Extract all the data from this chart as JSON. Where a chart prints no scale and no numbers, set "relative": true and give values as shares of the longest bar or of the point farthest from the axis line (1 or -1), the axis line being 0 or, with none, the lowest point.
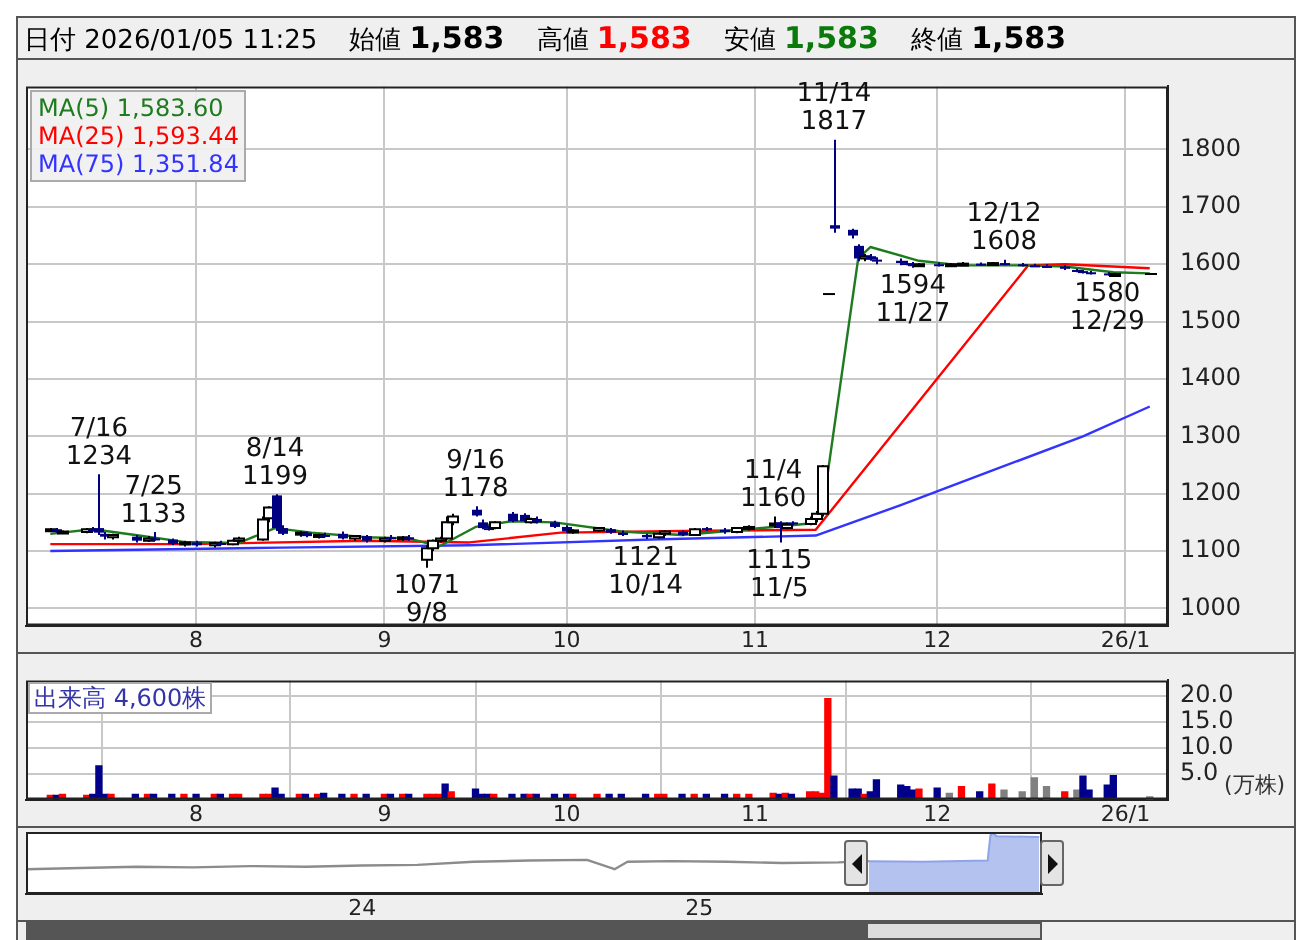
{
  "chart_data": [
    {
      "type": "candlestick",
      "annotations": [
        "日付 2026/01/05 11:25",
        "始値 1,583",
        "高値 1,583",
        "安値 1,583",
        "終値 1,583",
        {
          "text": "7/16\n1234",
          "x": "2025-07-16",
          "y": 1234
        },
        {
          "text": "7/25\n1133",
          "x": "2025-07-25",
          "y": 1133
        },
        {
          "text": "8/14\n1199",
          "x": "2025-08-14",
          "y": 1199
        },
        {
          "text": "1071\n9/8",
          "x": "2025-09-08",
          "y": 1071
        },
        {
          "text": "9/16\n1178",
          "x": "2025-09-16",
          "y": 1178
        },
        {
          "text": "1121\n10/14",
          "x": "2025-10-14",
          "y": 1121
        },
        {
          "text": "11/4\n1160",
          "x": "2025-11-04",
          "y": 1160
        },
        {
          "text": "1115\n11/5",
          "x": "2025-11-05",
          "y": 1115
        },
        {
          "text": "11/14\n1817",
          "x": "2025-11-14",
          "y": 1817
        },
        {
          "text": "1594\n11/27",
          "x": "2025-11-27",
          "y": 1594
        },
        {
          "text": "12/12\n1608",
          "x": "2025-12-12",
          "y": 1608
        },
        {
          "text": "1580\n12/29",
          "x": "2025-12-29",
          "y": 1580
        }
      ],
      "x": [
        "2025-07-08",
        "2025-07-09",
        "2025-07-10",
        "2025-07-14",
        "2025-07-15",
        "2025-07-16",
        "2025-07-17",
        "2025-07-18",
        "2025-07-22",
        "2025-07-24",
        "2025-07-25",
        "2025-07-28",
        "2025-07-30",
        "2025-08-01",
        "2025-08-04",
        "2025-08-05",
        "2025-08-07",
        "2025-08-08",
        "2025-08-12",
        "2025-08-13",
        "2025-08-14",
        "2025-08-15",
        "2025-08-18",
        "2025-08-19",
        "2025-08-21",
        "2025-08-22",
        "2025-08-25",
        "2025-08-27",
        "2025-08-29",
        "2025-09-01",
        "2025-09-02",
        "2025-09-04",
        "2025-09-05",
        "2025-09-08",
        "2025-09-09",
        "2025-09-10",
        "2025-09-11",
        "2025-09-12",
        "2025-09-16",
        "2025-09-17",
        "2025-09-18",
        "2025-09-19",
        "2025-09-22",
        "2025-09-24",
        "2025-09-25",
        "2025-09-26",
        "2025-09-29",
        "2025-10-01",
        "2025-10-02",
        "2025-10-06",
        "2025-10-08",
        "2025-10-10",
        "2025-10-14",
        "2025-10-16",
        "2025-10-17",
        "2025-10-20",
        "2025-10-22",
        "2025-10-24",
        "2025-10-27",
        "2025-10-29",
        "2025-10-31",
        "2025-11-04",
        "2025-11-05",
        "2025-11-06",
        "2025-11-07",
        "2025-11-10",
        "2025-11-11",
        "2025-11-12",
        "2025-11-13",
        "2025-11-14",
        "2025-11-17",
        "2025-11-18",
        "2025-11-19",
        "2025-11-20",
        "2025-11-21",
        "2025-11-25",
        "2025-11-26",
        "2025-11-27",
        "2025-11-28",
        "2025-12-01",
        "2025-12-03",
        "2025-12-05",
        "2025-12-08",
        "2025-12-10",
        "2025-12-12",
        "2025-12-15",
        "2025-12-17",
        "2025-12-19",
        "2025-12-22",
        "2025-12-24",
        "2025-12-25",
        "2025-12-26",
        "2025-12-29",
        "2025-12-30",
        "2026-01-05"
      ],
      "ohlc": [
        [
          1135,
          1140,
          1133,
          1138
        ],
        [
          1138,
          1140,
          1132,
          1135
        ],
        [
          1132,
          1136,
          1130,
          1134
        ],
        [
          1133,
          1140,
          1131,
          1138
        ],
        [
          1138,
          1142,
          1134,
          1136
        ],
        [
          1140,
          1234,
          1128,
          1132
        ],
        [
          1130,
          1133,
          1120,
          1125
        ],
        [
          1124,
          1130,
          1120,
          1128
        ],
        [
          1125,
          1128,
          1115,
          1118
        ],
        [
          1118,
          1126,
          1116,
          1122
        ],
        [
          1122,
          1133,
          1118,
          1120
        ],
        [
          1120,
          1122,
          1110,
          1112
        ],
        [
          1112,
          1118,
          1108,
          1115
        ],
        [
          1115,
          1118,
          1108,
          1110
        ],
        [
          1110,
          1116,
          1106,
          1114
        ],
        [
          1114,
          1118,
          1110,
          1112
        ],
        [
          1112,
          1120,
          1110,
          1118
        ],
        [
          1118,
          1125,
          1115,
          1122
        ],
        [
          1120,
          1160,
          1118,
          1155
        ],
        [
          1157,
          1178,
          1150,
          1176
        ],
        [
          1197,
          1199,
          1135,
          1140
        ],
        [
          1140,
          1145,
          1128,
          1130
        ],
        [
          1130,
          1135,
          1125,
          1132
        ],
        [
          1132,
          1134,
          1124,
          1126
        ],
        [
          1126,
          1130,
          1122,
          1128
        ],
        [
          1128,
          1132,
          1124,
          1125
        ],
        [
          1130,
          1134,
          1120,
          1122
        ],
        [
          1122,
          1128,
          1118,
          1126
        ],
        [
          1126,
          1128,
          1115,
          1118
        ],
        [
          1118,
          1125,
          1115,
          1122
        ],
        [
          1124,
          1128,
          1120,
          1121
        ],
        [
          1121,
          1126,
          1118,
          1124
        ],
        [
          1124,
          1128,
          1118,
          1120
        ],
        [
          1085,
          1110,
          1071,
          1105
        ],
        [
          1105,
          1120,
          1100,
          1118
        ],
        [
          1118,
          1125,
          1115,
          1122
        ],
        [
          1122,
          1160,
          1120,
          1150
        ],
        [
          1150,
          1165,
          1145,
          1160
        ],
        [
          1172,
          1178,
          1160,
          1162
        ],
        [
          1150,
          1155,
          1138,
          1140
        ],
        [
          1140,
          1144,
          1136,
          1138
        ],
        [
          1140,
          1152,
          1138,
          1150
        ],
        [
          1165,
          1168,
          1150,
          1152
        ],
        [
          1163,
          1166,
          1150,
          1152
        ],
        [
          1150,
          1158,
          1148,
          1156
        ],
        [
          1156,
          1160,
          1148,
          1150
        ],
        [
          1150,
          1153,
          1140,
          1142
        ],
        [
          1142,
          1145,
          1132,
          1134
        ],
        [
          1134,
          1138,
          1130,
          1136
        ],
        [
          1136,
          1142,
          1134,
          1140
        ],
        [
          1138,
          1140,
          1130,
          1132
        ],
        [
          1132,
          1136,
          1126,
          1128
        ],
        [
          1128,
          1130,
          1121,
          1124
        ],
        [
          1124,
          1132,
          1122,
          1130
        ],
        [
          1130,
          1136,
          1126,
          1134
        ],
        [
          1134,
          1136,
          1126,
          1128
        ],
        [
          1128,
          1140,
          1126,
          1138
        ],
        [
          1140,
          1142,
          1135,
          1137
        ],
        [
          1137,
          1140,
          1130,
          1133
        ],
        [
          1133,
          1142,
          1131,
          1140
        ],
        [
          1140,
          1145,
          1136,
          1142
        ],
        [
          1145,
          1160,
          1140,
          1148
        ],
        [
          1150,
          1152,
          1115,
          1140
        ],
        [
          1140,
          1150,
          1138,
          1146
        ],
        [
          1150,
          1152,
          1145,
          1147
        ],
        [
          1147,
          1160,
          1145,
          1156
        ],
        [
          1156,
          1170,
          1150,
          1165
        ],
        [
          1165,
          1250,
          1160,
          1248
        ],
        [
          1548,
          1548,
          1548,
          1548
        ],
        [
          1668,
          1817,
          1655,
          1662
        ],
        [
          1660,
          1662,
          1645,
          1650
        ],
        [
          1632,
          1635,
          1605,
          1610
        ],
        [
          1610,
          1618,
          1605,
          1614
        ],
        [
          1614,
          1618,
          1606,
          1608
        ],
        [
          1608,
          1612,
          1600,
          1606
        ],
        [
          1606,
          1610,
          1598,
          1602
        ],
        [
          1602,
          1606,
          1598,
          1600
        ],
        [
          1600,
          1604,
          1594,
          1598
        ],
        [
          1598,
          1602,
          1595,
          1600
        ],
        [
          1600,
          1603,
          1596,
          1598
        ],
        [
          1598,
          1602,
          1595,
          1600
        ],
        [
          1600,
          1604,
          1597,
          1601
        ],
        [
          1601,
          1603,
          1597,
          1599
        ],
        [
          1599,
          1604,
          1597,
          1602
        ],
        [
          1602,
          1608,
          1598,
          1600
        ],
        [
          1600,
          1602,
          1596,
          1598
        ],
        [
          1598,
          1601,
          1595,
          1597
        ],
        [
          1597,
          1600,
          1594,
          1596
        ],
        [
          1596,
          1598,
          1590,
          1592
        ],
        [
          1590,
          1592,
          1586,
          1588
        ],
        [
          1588,
          1590,
          1584,
          1586
        ],
        [
          1586,
          1588,
          1582,
          1584
        ],
        [
          1584,
          1586,
          1580,
          1582
        ],
        [
          1582,
          1585,
          1581,
          1583
        ],
        [
          1583,
          1583,
          1583,
          1583
        ]
      ],
      "series": [
        {
          "name": "MA(5) 1,583.60",
          "color": "#1e7b1e",
          "type": "line",
          "x": [
            "2025-07-08",
            "2025-07-15",
            "2025-07-22",
            "2025-07-30",
            "2025-08-08",
            "2025-08-14",
            "2025-08-20",
            "2025-08-29",
            "2025-09-05",
            "2025-09-10",
            "2025-09-16",
            "2025-09-22",
            "2025-09-29",
            "2025-10-10",
            "2025-10-20",
            "2025-10-31",
            "2025-11-10",
            "2025-11-12",
            "2025-11-18",
            "2025-11-20",
            "2025-11-28",
            "2025-12-05",
            "2025-12-15",
            "2025-12-22",
            "2025-12-30",
            "2026-01-05"
          ],
          "values": [
            1130,
            1138,
            1128,
            1116,
            1114,
            1140,
            1132,
            1124,
            1122,
            1108,
            1142,
            1152,
            1150,
            1134,
            1128,
            1138,
            1148,
            1162,
            1610,
            1630,
            1606,
            1598,
            1598,
            1596,
            1586,
            1584
          ]
        },
        {
          "name": "MA(25) 1,593.44",
          "color": "#ff0000",
          "type": "line",
          "x": [
            "2025-07-08",
            "2025-07-31",
            "2025-08-29",
            "2025-09-15",
            "2025-09-30",
            "2025-10-20",
            "2025-11-11",
            "2025-12-16",
            "2025-12-22",
            "2026-01-05"
          ],
          "values": [
            1112,
            1112,
            1118,
            1115,
            1132,
            1135,
            1137,
            1598,
            1600,
            1593
          ]
        },
        {
          "name": "MA(75) 1,351.84",
          "color": "#3333ff",
          "type": "line",
          "x": [
            "2025-07-08",
            "2025-08-15",
            "2025-09-15",
            "2025-10-15",
            "2025-11-11",
            "2025-11-25",
            "2025-12-10",
            "2025-12-25",
            "2026-01-05"
          ],
          "values": [
            1100,
            1106,
            1110,
            1120,
            1127,
            1180,
            1240,
            1300,
            1352
          ]
        }
      ],
      "xlim": [
        "2025-07-04",
        "2026-01-08"
      ],
      "xticks": [
        {
          "value": "2025-08-01",
          "label": "8"
        },
        {
          "value": "2025-09-01",
          "label": "9"
        },
        {
          "value": "2025-10-01",
          "label": "10"
        },
        {
          "value": "2025-11-01",
          "label": "11"
        },
        {
          "value": "2025-12-01",
          "label": "12"
        },
        {
          "value": "2026-01-01",
          "label": "26/1"
        }
      ],
      "ylim": [
        970,
        1910
      ],
      "yticks": [
        1000,
        1100,
        1200,
        1300,
        1400,
        1500,
        1600,
        1700,
        1800
      ],
      "grid": true,
      "legend": "top left",
      "marker": "none"
    },
    {
      "type": "bar",
      "annotations": [
        "出来高 4,600株"
      ],
      "ylabel": "(万株)",
      "x": [
        "2025-07-08",
        "2025-07-09",
        "2025-07-10",
        "2025-07-14",
        "2025-07-15",
        "2025-07-16",
        "2025-07-17",
        "2025-07-18",
        "2025-07-22",
        "2025-07-24",
        "2025-07-25",
        "2025-07-28",
        "2025-07-30",
        "2025-08-01",
        "2025-08-04",
        "2025-08-05",
        "2025-08-07",
        "2025-08-08",
        "2025-08-12",
        "2025-08-13",
        "2025-08-14",
        "2025-08-15",
        "2025-08-18",
        "2025-08-19",
        "2025-08-21",
        "2025-08-22",
        "2025-08-25",
        "2025-08-27",
        "2025-08-29",
        "2025-09-01",
        "2025-09-02",
        "2025-09-04",
        "2025-09-05",
        "2025-09-08",
        "2025-09-09",
        "2025-09-10",
        "2025-09-11",
        "2025-09-12",
        "2025-09-16",
        "2025-09-17",
        "2025-09-18",
        "2025-09-19",
        "2025-09-22",
        "2025-09-24",
        "2025-09-25",
        "2025-09-26",
        "2025-09-29",
        "2025-10-01",
        "2025-10-02",
        "2025-10-06",
        "2025-10-08",
        "2025-10-10",
        "2025-10-14",
        "2025-10-16",
        "2025-10-17",
        "2025-10-20",
        "2025-10-22",
        "2025-10-24",
        "2025-10-27",
        "2025-10-29",
        "2025-10-31",
        "2025-11-04",
        "2025-11-05",
        "2025-11-06",
        "2025-11-07",
        "2025-11-10",
        "2025-11-11",
        "2025-11-12",
        "2025-11-13",
        "2025-11-14",
        "2025-11-17",
        "2025-11-18",
        "2025-11-19",
        "2025-11-20",
        "2025-11-21",
        "2025-11-25",
        "2025-11-26",
        "2025-11-27",
        "2025-11-28",
        "2025-12-01",
        "2025-12-03",
        "2025-12-05",
        "2025-12-08",
        "2025-12-10",
        "2025-12-12",
        "2025-12-15",
        "2025-12-17",
        "2025-12-19",
        "2025-12-22",
        "2025-12-24",
        "2025-12-25",
        "2025-12-26",
        "2025-12-29",
        "2025-12-30",
        "2026-01-05"
      ],
      "values": [
        0.8,
        0.8,
        1.0,
        0.8,
        1.0,
        6.5,
        1.0,
        1.0,
        1.0,
        1.0,
        1.0,
        1.0,
        1.0,
        1.0,
        1.0,
        1.0,
        1.0,
        1.0,
        1.0,
        1.0,
        2.2,
        1.0,
        1.0,
        1.0,
        1.0,
        1.2,
        1.0,
        1.0,
        1.0,
        1.0,
        1.0,
        1.0,
        1.0,
        1.0,
        1.0,
        1.0,
        3.0,
        1.5,
        2.0,
        1.0,
        1.0,
        1.0,
        1.0,
        1.0,
        1.0,
        1.0,
        1.0,
        1.0,
        1.0,
        1.0,
        1.0,
        1.0,
        1.0,
        1.0,
        1.0,
        1.0,
        1.0,
        1.0,
        1.0,
        1.0,
        1.0,
        1.2,
        1.0,
        1.2,
        1.0,
        1.5,
        1.5,
        1.2,
        19.5,
        4.5,
        2.0,
        2.0,
        1.0,
        1.5,
        3.8,
        2.8,
        2.5,
        1.8,
        2.0,
        2.2,
        1.2,
        2.5,
        1.5,
        3.0,
        1.8,
        1.5,
        4.2,
        2.5,
        1.5,
        1.8,
        4.5,
        1.8,
        2.8,
        4.6,
        0.5
      ],
      "colors": [
        "#ff0000",
        "#00008b",
        "#ff0000",
        "#ff0000",
        "#00008b",
        "#00008b",
        "#00008b",
        "#ff0000",
        "#00008b",
        "#ff0000",
        "#00008b",
        "#00008b",
        "#ff0000",
        "#00008b",
        "#ff0000",
        "#00008b",
        "#ff0000",
        "#ff0000",
        "#ff0000",
        "#ff0000",
        "#00008b",
        "#00008b",
        "#ff0000",
        "#00008b",
        "#ff0000",
        "#00008b",
        "#00008b",
        "#ff0000",
        "#00008b",
        "#ff0000",
        "#00008b",
        "#ff0000",
        "#00008b",
        "#ff0000",
        "#ff0000",
        "#ff0000",
        "#00008b",
        "#ff0000",
        "#00008b",
        "#00008b",
        "#00008b",
        "#ff0000",
        "#00008b",
        "#00008b",
        "#ff0000",
        "#00008b",
        "#00008b",
        "#00008b",
        "#ff0000",
        "#ff0000",
        "#00008b",
        "#00008b",
        "#00008b",
        "#ff0000",
        "#ff0000",
        "#00008b",
        "#ff0000",
        "#00008b",
        "#00008b",
        "#ff0000",
        "#ff0000",
        "#ff0000",
        "#00008b",
        "#ff0000",
        "#00008b",
        "#ff0000",
        "#ff0000",
        "#ff0000",
        "#ff0000",
        "#00008b",
        "#00008b",
        "#00008b",
        "#ff0000",
        "#00008b",
        "#00008b",
        "#00008b",
        "#00008b",
        "#00008b",
        "#ff0000",
        "#00008b",
        "#808080",
        "#ff0000",
        "#00008b",
        "#ff0000",
        "#808080",
        "#808080",
        "#808080",
        "#808080",
        "#ff0000",
        "#808080",
        "#00008b",
        "#00008b",
        "#00008b",
        "#00008b",
        "#808080"
      ],
      "xlim": [
        "2025-07-04",
        "2026-01-08"
      ],
      "xticks": [
        {
          "value": "2025-08-01",
          "label": "8"
        },
        {
          "value": "2025-09-01",
          "label": "9"
        },
        {
          "value": "2025-10-01",
          "label": "10"
        },
        {
          "value": "2025-11-01",
          "label": "11"
        },
        {
          "value": "2025-12-01",
          "label": "12"
        },
        {
          "value": "2026-01-01",
          "label": "26/1"
        }
      ],
      "ylim": [
        0,
        23
      ],
      "yticks": [
        {
          "value": 5,
          "label": "5.0"
        },
        {
          "value": 10,
          "label": "10.0"
        },
        {
          "value": 15,
          "label": "15.0"
        },
        {
          "value": 20,
          "label": "20.0"
        }
      ],
      "grid": true
    },
    {
      "type": "area",
      "relative": true,
      "marker": "none",
      "series": [
        {
          "color": "#8c8c8c",
          "type": "line",
          "x": [
            "2023-01-01",
            "2023-03-01",
            "2023-05-01",
            "2023-07-01",
            "2023-09-01",
            "2023-11-01",
            "2024-01-01",
            "2024-03-01",
            "2024-05-01",
            "2024-07-01",
            "2024-09-01",
            "2024-10-01",
            "2024-10-15",
            "2024-12-01",
            "2025-02-01",
            "2025-04-01",
            "2025-06-01",
            "2025-07-04"
          ],
          "values": [
            0.4,
            0.42,
            0.44,
            0.43,
            0.45,
            0.44,
            0.46,
            0.47,
            0.52,
            0.54,
            0.55,
            0.4,
            0.52,
            0.53,
            0.52,
            0.5,
            0.51,
            0.53
          ]
        },
        {
          "color": "#8fa3e8",
          "type": "area",
          "x": [
            "2025-07-04",
            "2025-09-01",
            "2025-11-10",
            "2025-11-13",
            "2025-11-14",
            "2025-11-20",
            "2026-01-05"
          ],
          "values": [
            0.53,
            0.52,
            0.54,
            0.95,
            1,
            0.93,
            0.92
          ]
        }
      ],
      "xlim": [
        "2023-01-01",
        "2026-01-08"
      ],
      "xticks": [
        {
          "value": "2024-01-01",
          "label": "24"
        },
        {
          "value": "2025-01-01",
          "label": "25"
        }
      ]
    }
  ]
}
